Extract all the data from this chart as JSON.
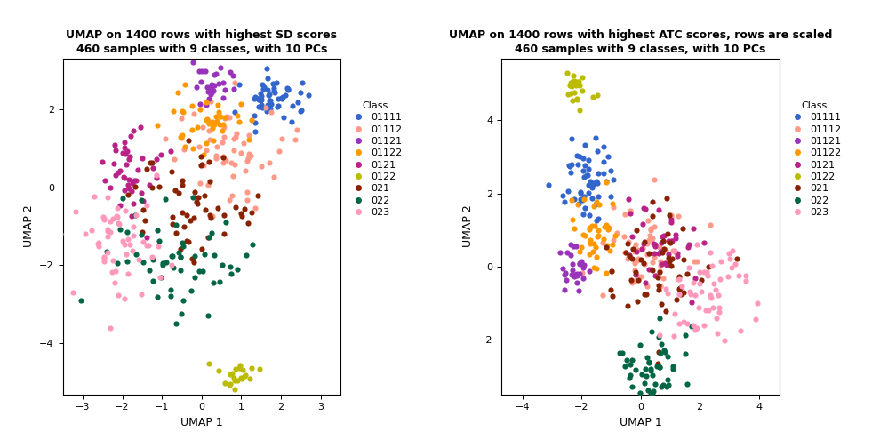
{
  "title1": "UMAP on 1400 rows with highest SD scores\n460 samples with 9 classes, with 10 PCs",
  "title2": "UMAP on 1400 rows with highest ATC scores, rows are scaled\n460 samples with 9 classes, with 10 PCs",
  "xlabel": "UMAP 1",
  "ylabel": "UMAP 2",
  "classes": [
    "01111",
    "01112",
    "01121",
    "01122",
    "0121",
    "0122",
    "021",
    "022",
    "023"
  ],
  "colors": [
    "#3366CC",
    "#FF9988",
    "#9933BB",
    "#FF9900",
    "#BB2288",
    "#BBBB00",
    "#882200",
    "#006644",
    "#FF99BB"
  ],
  "plot1_xlim": [
    -3.5,
    3.5
  ],
  "plot1_ylim": [
    -5.3,
    3.3
  ],
  "plot1_xticks": [
    -3,
    -2,
    -1,
    0,
    1,
    2,
    3
  ],
  "plot1_yticks": [
    -4,
    -2,
    0,
    2
  ],
  "plot2_xlim": [
    -4.7,
    4.7
  ],
  "plot2_ylim": [
    -3.5,
    5.7
  ],
  "plot2_xticks": [
    -4,
    -2,
    0,
    2,
    4
  ],
  "plot2_yticks": [
    -2,
    0,
    2,
    4
  ],
  "marker_size": 20,
  "legend_title": "Class",
  "background_color": "#FFFFFF",
  "title_fontsize": 9,
  "label_fontsize": 9,
  "tick_fontsize": 8,
  "legend_fontsize": 8
}
